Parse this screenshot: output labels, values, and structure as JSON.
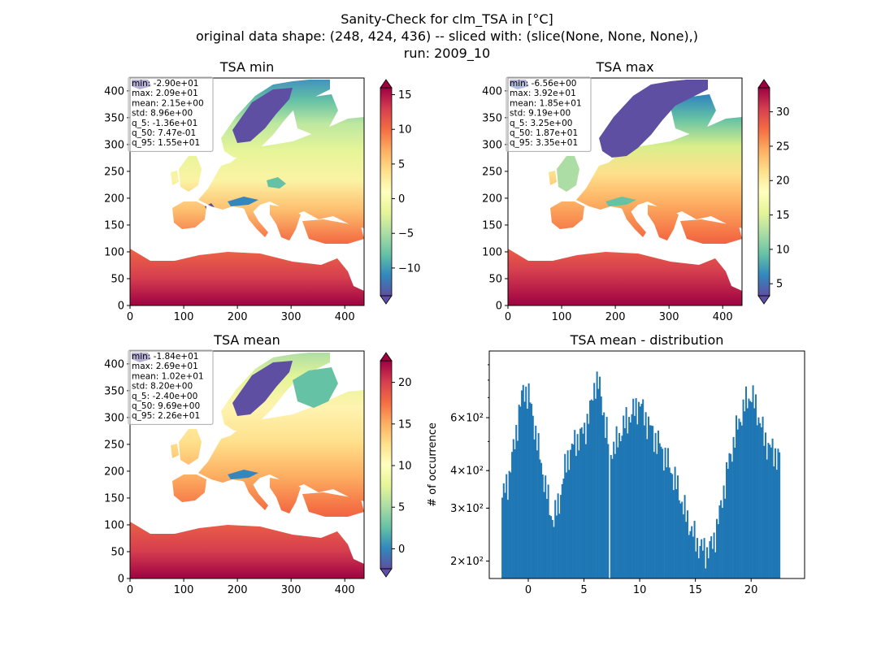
{
  "figure": {
    "title_lines": [
      "Sanity-Check for clm_TSA in [°C]",
      "original data shape: (248, 424, 436) -- sliced with: (slice(None, None, None),)",
      "run: 2009_10"
    ]
  },
  "chart_data": [
    {
      "type": "heatmap",
      "title": "TSA min",
      "xlim": [
        0,
        436
      ],
      "ylim": [
        0,
        424
      ],
      "x_ticks": [
        0,
        100,
        200,
        300,
        400
      ],
      "y_ticks": [
        0,
        50,
        100,
        150,
        200,
        250,
        300,
        350,
        400
      ],
      "colormap": "Spectral_r",
      "colorbar": {
        "min": -14,
        "max": 16,
        "ticks": [
          15,
          10,
          5,
          0,
          -5,
          -10
        ],
        "tick_labels": [
          "15",
          "10",
          "5",
          "0",
          "−5",
          "−10"
        ]
      },
      "stats": [
        "min: -2.90e+01",
        "max: 2.09e+01",
        "mean: 2.15e+00",
        "std: 8.96e+00",
        "q_5: -1.36e+01",
        "q_50: 7.47e-01",
        "q_95: 1.55e+01"
      ]
    },
    {
      "type": "heatmap",
      "title": "TSA max",
      "xlim": [
        0,
        436
      ],
      "ylim": [
        0,
        424
      ],
      "x_ticks": [
        0,
        100,
        200,
        300,
        400
      ],
      "y_ticks": [
        0,
        50,
        100,
        150,
        200,
        250,
        300,
        350,
        400
      ],
      "colormap": "Spectral_r",
      "colorbar": {
        "min": 3.25,
        "max": 33.5,
        "ticks": [
          30,
          25,
          20,
          15,
          10,
          5
        ],
        "tick_labels": [
          "30",
          "25",
          "20",
          "15",
          "10",
          "5"
        ]
      },
      "stats": [
        "min: -6.56e+00",
        "max: 3.92e+01",
        "mean: 1.85e+01",
        "std: 9.19e+00",
        "q_5: 3.25e+00",
        "q_50: 1.87e+01",
        "q_95: 3.35e+01"
      ]
    },
    {
      "type": "heatmap",
      "title": "TSA mean",
      "xlim": [
        0,
        436
      ],
      "ylim": [
        0,
        424
      ],
      "x_ticks": [
        0,
        100,
        200,
        300,
        400
      ],
      "y_ticks": [
        0,
        50,
        100,
        150,
        200,
        250,
        300,
        350,
        400
      ],
      "colormap": "Spectral_r",
      "colorbar": {
        "min": -2.4,
        "max": 22.6,
        "ticks": [
          20,
          15,
          10,
          5,
          0
        ],
        "tick_labels": [
          "20",
          "15",
          "10",
          "5",
          "0"
        ]
      },
      "stats": [
        "min: -1.84e+01",
        "max: 2.69e+01",
        "mean: 1.02e+01",
        "std: 8.20e+00",
        "q_5: -2.40e+00",
        "q_50: 9.69e+00",
        "q_95: 2.26e+01"
      ]
    },
    {
      "type": "bar",
      "title": "TSA mean - distribution",
      "ylabel": "# of occurrence",
      "yscale": "log",
      "xlim": [
        -3.5,
        24.8
      ],
      "ylim": [
        175,
        1000
      ],
      "x_ticks": [
        0,
        5,
        10,
        15,
        20
      ],
      "y_ticks": [
        {
          "value": 200,
          "label": "2×10²"
        },
        {
          "value": 300,
          "label": "3×10²"
        },
        {
          "value": 400,
          "label": "4×10²"
        },
        {
          "value": 600,
          "label": "6×10²"
        }
      ],
      "color": "#1f77b4",
      "bin_range": [
        -2.4,
        22.6
      ],
      "bin_count": 200,
      "shape_keypoints": [
        [
          -2.4,
          320
        ],
        [
          -1.8,
          370
        ],
        [
          -1.2,
          500
        ],
        [
          -0.8,
          640
        ],
        [
          -0.4,
          750
        ],
        [
          0.0,
          720
        ],
        [
          0.5,
          580
        ],
        [
          1.0,
          450
        ],
        [
          1.5,
          360
        ],
        [
          2.0,
          290
        ],
        [
          2.3,
          275
        ],
        [
          2.8,
          320
        ],
        [
          3.5,
          440
        ],
        [
          4.2,
          500
        ],
        [
          5.0,
          540
        ],
        [
          5.6,
          640
        ],
        [
          6.0,
          800
        ],
        [
          6.4,
          760
        ],
        [
          6.9,
          570
        ],
        [
          7.3,
          470
        ],
        [
          7.8,
          480
        ],
        [
          8.5,
          560
        ],
        [
          9.3,
          620
        ],
        [
          10.0,
          670
        ],
        [
          10.6,
          590
        ],
        [
          11.3,
          520
        ],
        [
          12.0,
          470
        ],
        [
          12.6,
          420
        ],
        [
          13.3,
          360
        ],
        [
          14.0,
          295
        ],
        [
          14.7,
          250
        ],
        [
          15.3,
          225
        ],
        [
          16.0,
          215
        ],
        [
          16.6,
          230
        ],
        [
          17.2,
          290
        ],
        [
          17.8,
          390
        ],
        [
          18.6,
          530
        ],
        [
          19.4,
          660
        ],
        [
          20.0,
          720
        ],
        [
          20.6,
          620
        ],
        [
          21.2,
          510
        ],
        [
          21.8,
          470
        ],
        [
          22.6,
          440
        ]
      ],
      "gap_at": 7.3
    }
  ]
}
